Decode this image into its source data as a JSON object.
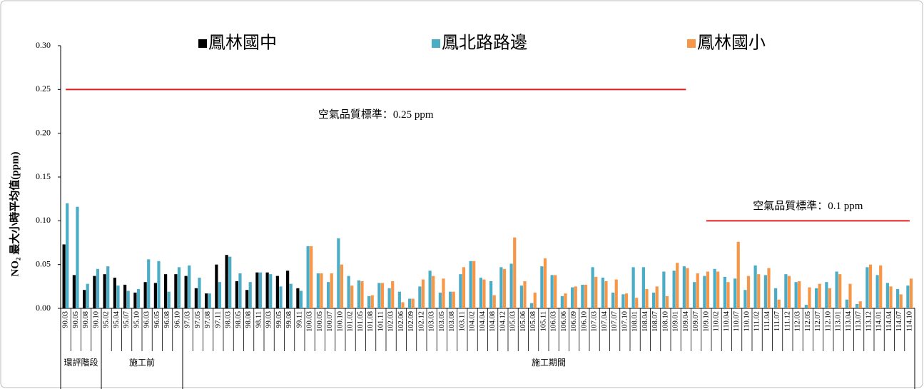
{
  "chart_data": {
    "type": "bar",
    "y_label": "NO₂ 最大小時平均值(ppm)",
    "categories": [
      "90.03",
      "90.05",
      "90.08",
      "90.10",
      "95.02",
      "95.04",
      "95.07",
      "95.10",
      "96.03",
      "96.05",
      "96.08",
      "96.10",
      "97.03",
      "97.05",
      "97.08",
      "97.11",
      "98.03",
      "98.05",
      "98.08",
      "98.11",
      "99.03",
      "99.05",
      "99.08",
      "99.11",
      "100.03",
      "100.05",
      "100.07",
      "100.10",
      "101.02",
      "101.05",
      "101.08",
      "101.11",
      "102.03",
      "102.06",
      "102.09",
      "102.12",
      "103.03",
      "103.05",
      "103.08",
      "103.11",
      "104.02",
      "104.04",
      "104.08",
      "104.12",
      "105.03",
      "105.06",
      "105.08",
      "105.11",
      "106.03",
      "106.06",
      "106.09",
      "106.10",
      "107.03",
      "107.04",
      "107.07",
      "107.10",
      "108.01",
      "108.04",
      "108.07",
      "108.10",
      "109.01",
      "109.04",
      "109.07",
      "109.10",
      "110.02",
      "110.04",
      "110.07",
      "110.10",
      "111.02",
      "111.04",
      "111.07",
      "111.12",
      "112.03",
      "112.05",
      "112.07",
      "112.10",
      "113.01",
      "113.04",
      "113.07",
      "113.12",
      "114.01",
      "114.04",
      "114.07",
      "114.10"
    ],
    "series": [
      {
        "name": "鳳林國中",
        "color": "#000000",
        "values": [
          0.073,
          0.038,
          0.021,
          0.037,
          0.039,
          0.035,
          0.027,
          0.018,
          0.03,
          0.029,
          0.039,
          0.039,
          0.037,
          0.023,
          0.017,
          0.05,
          0.061,
          0.031,
          0.021,
          0.041,
          0.041,
          0.037,
          0.043,
          0.023,
          null,
          null,
          null,
          null,
          null,
          null,
          null,
          null,
          null,
          null,
          null,
          null,
          null,
          null,
          null,
          null,
          null,
          null,
          null,
          null,
          null,
          null,
          null,
          null,
          null,
          null,
          null,
          null,
          null,
          null,
          null,
          null,
          null,
          null,
          null,
          null,
          null,
          null,
          null,
          null,
          null,
          null,
          null,
          null,
          null,
          null,
          null,
          null,
          null,
          null,
          null,
          null,
          null,
          null,
          null,
          null,
          null,
          null,
          null,
          null
        ]
      },
      {
        "name": "鳳北路路邊",
        "color": "#4bacc6",
        "values": [
          0.12,
          0.116,
          0.028,
          0.045,
          0.048,
          0.026,
          0.02,
          0.022,
          0.056,
          0.054,
          0.019,
          0.047,
          0.049,
          0.035,
          0.017,
          0.03,
          0.059,
          0.04,
          0.03,
          0.041,
          0.039,
          0.025,
          0.028,
          0.02,
          0.071,
          0.04,
          0.03,
          0.08,
          0.037,
          0.032,
          0.014,
          0.029,
          0.023,
          0.019,
          0.011,
          0.025,
          0.043,
          0.018,
          0.019,
          0.039,
          0.054,
          0.035,
          0.031,
          0.047,
          0.051,
          0.026,
          0.006,
          0.048,
          0.038,
          0.014,
          0.024,
          0.027,
          0.047,
          0.035,
          0.018,
          0.016,
          0.047,
          0.047,
          0.018,
          0.042,
          0.043,
          0.048,
          0.03,
          0.037,
          0.045,
          0.036,
          0.034,
          0.021,
          0.049,
          0.038,
          0.023,
          0.039,
          0.03,
          0.004,
          0.023,
          0.03,
          0.042,
          0.01,
          0.005,
          0.047,
          0.038,
          0.029,
          0.022,
          0.026
        ]
      },
      {
        "name": "鳳林國小",
        "color": "#f79646",
        "values": [
          null,
          null,
          null,
          null,
          null,
          null,
          null,
          null,
          null,
          null,
          null,
          null,
          null,
          null,
          null,
          null,
          null,
          null,
          null,
          null,
          null,
          null,
          null,
          null,
          0.071,
          0.04,
          0.04,
          0.05,
          0.026,
          0.031,
          0.015,
          0.029,
          0.031,
          0.007,
          0.011,
          0.033,
          0.037,
          0.034,
          0.019,
          0.047,
          0.054,
          0.033,
          0.015,
          0.045,
          0.081,
          0.031,
          0.018,
          0.057,
          0.038,
          0.017,
          0.025,
          0.027,
          0.036,
          0.031,
          0.033,
          0.017,
          0.012,
          0.022,
          0.025,
          0.014,
          0.052,
          0.046,
          0.04,
          0.042,
          0.042,
          0.03,
          0.076,
          0.037,
          0.039,
          0.046,
          0.01,
          0.037,
          0.031,
          0.024,
          0.028,
          0.023,
          0.039,
          0.028,
          0.008,
          0.05,
          0.049,
          0.025,
          0.016,
          0.034
        ]
      }
    ],
    "ylim": [
      0,
      0.3
    ],
    "yticks": [
      {
        "value": 0,
        "label": "0.00"
      },
      {
        "value": 0.05,
        "label": "0.05"
      },
      {
        "value": 0.1,
        "label": "0.10"
      },
      {
        "value": 0.15,
        "label": "0.15"
      },
      {
        "value": 0.2,
        "label": "0.20"
      },
      {
        "value": 0.25,
        "label": "0.25"
      },
      {
        "value": 0.3,
        "label": "0.30"
      }
    ],
    "reference_lines": [
      {
        "value": 0.25,
        "label": "空氣品質標準：0.25 ppm",
        "color": "#e02020",
        "from": "90.03",
        "to": "109.04"
      },
      {
        "value": 0.1,
        "label": "空氣品質標準：0.1 ppm",
        "color": "#e02020",
        "from": "109.10",
        "to": "114.10"
      }
    ],
    "phases": [
      {
        "label": "環評階段",
        "from": "90.03",
        "to": "90.10"
      },
      {
        "label": "施工前",
        "from": "95.02",
        "to": "96.10"
      },
      {
        "label": "施工期間",
        "from": "97.03",
        "to": "114.10"
      }
    ],
    "legend_position": "top"
  }
}
